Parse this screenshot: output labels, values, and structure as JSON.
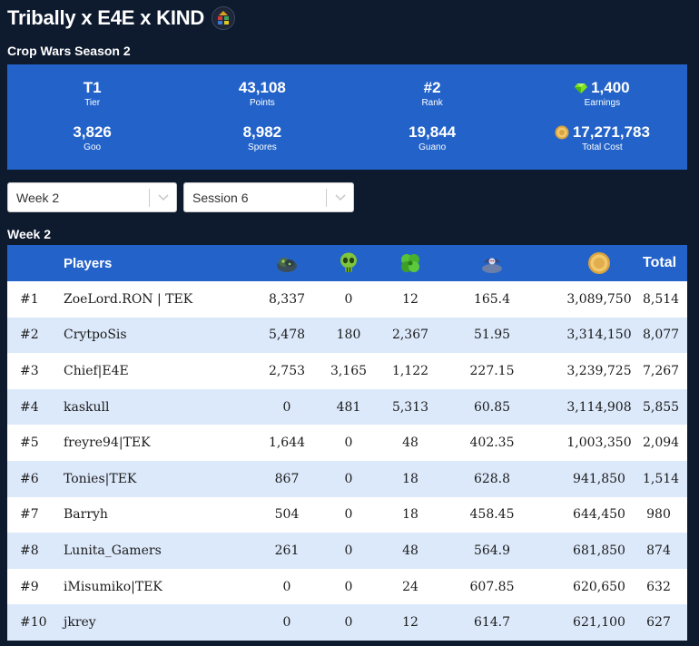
{
  "header": {
    "title": "Tribally x E4E x KIND",
    "logo_text": "KIND"
  },
  "subtitle": "Crop Wars Season 2",
  "stats": [
    {
      "value": "T1",
      "label": "Tier",
      "icon": ""
    },
    {
      "value": "43,108",
      "label": "Points",
      "icon": ""
    },
    {
      "value": "#2",
      "label": "Rank",
      "icon": ""
    },
    {
      "value": "1,400",
      "label": "Earnings",
      "icon": "gem-icon"
    },
    {
      "value": "3,826",
      "label": "Goo",
      "icon": ""
    },
    {
      "value": "8,982",
      "label": "Spores",
      "icon": ""
    },
    {
      "value": "19,844",
      "label": "Guano",
      "icon": ""
    },
    {
      "value": "17,271,783",
      "label": "Total Cost",
      "icon": "coin-icon"
    }
  ],
  "filters": {
    "week": "Week 2",
    "session": "Session 6"
  },
  "section_title": "Week 2",
  "table": {
    "headers": {
      "players": "Players",
      "total": "Total",
      "icons": [
        "goo-blob-icon",
        "alien-skull-icon",
        "clover-spores-icon",
        "bat-guano-icon",
        "gold-coin-icon"
      ]
    },
    "rows": [
      {
        "rank": "#1",
        "player": "ZoeLord.RON | TEK",
        "goo": "8,337",
        "spores": "0",
        "clover": "12",
        "guano": "165.4",
        "cost": "3,089,750",
        "total": "8,514"
      },
      {
        "rank": "#2",
        "player": "CrytpoSis",
        "goo": "5,478",
        "spores": "180",
        "clover": "2,367",
        "guano": "51.95",
        "cost": "3,314,150",
        "total": "8,077"
      },
      {
        "rank": "#3",
        "player": "Chief|E4E",
        "goo": "2,753",
        "spores": "3,165",
        "clover": "1,122",
        "guano": "227.15",
        "cost": "3,239,725",
        "total": "7,267"
      },
      {
        "rank": "#4",
        "player": "kaskull",
        "goo": "0",
        "spores": "481",
        "clover": "5,313",
        "guano": "60.85",
        "cost": "3,114,908",
        "total": "5,855"
      },
      {
        "rank": "#5",
        "player": "freyre94|TEK",
        "goo": "1,644",
        "spores": "0",
        "clover": "48",
        "guano": "402.35",
        "cost": "1,003,350",
        "total": "2,094"
      },
      {
        "rank": "#6",
        "player": "Tonies|TEK",
        "goo": "867",
        "spores": "0",
        "clover": "18",
        "guano": "628.8",
        "cost": "941,850",
        "total": "1,514"
      },
      {
        "rank": "#7",
        "player": "Barryh",
        "goo": "504",
        "spores": "0",
        "clover": "18",
        "guano": "458.45",
        "cost": "644,450",
        "total": "980"
      },
      {
        "rank": "#8",
        "player": "Lunita_Gamers",
        "goo": "261",
        "spores": "0",
        "clover": "48",
        "guano": "564.9",
        "cost": "681,850",
        "total": "874"
      },
      {
        "rank": "#9",
        "player": "iMisumiko|TEK",
        "goo": "0",
        "spores": "0",
        "clover": "24",
        "guano": "607.85",
        "cost": "620,650",
        "total": "632"
      },
      {
        "rank": "#10",
        "player": "jkrey",
        "goo": "0",
        "spores": "0",
        "clover": "12",
        "guano": "614.7",
        "cost": "621,100",
        "total": "627"
      }
    ]
  }
}
